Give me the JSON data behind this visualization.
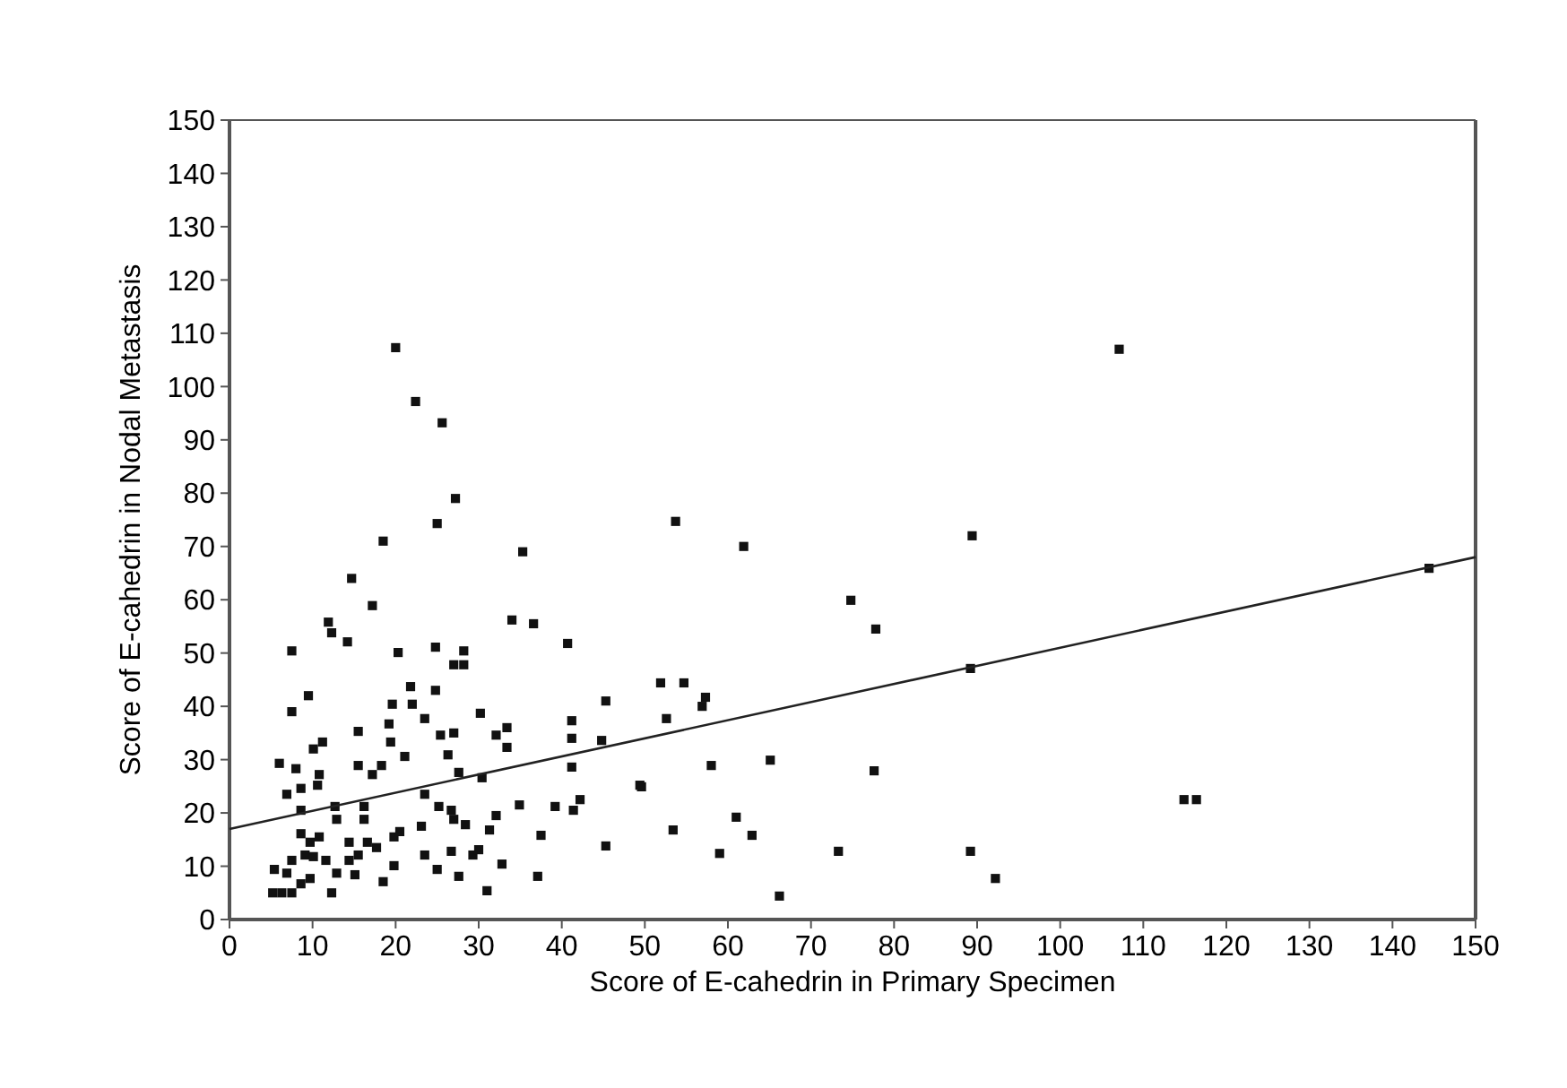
{
  "chart_data": {
    "type": "scatter",
    "xlabel": "Score of E-cahedrin in Primary Specimen",
    "ylabel": "Score of E-cahedrin in Nodal Metastasis",
    "xlim": [
      0,
      150
    ],
    "ylim": [
      0,
      150
    ],
    "xticks": [
      0,
      10,
      20,
      30,
      40,
      50,
      60,
      70,
      80,
      90,
      100,
      110,
      120,
      130,
      140,
      150
    ],
    "yticks": [
      0,
      10,
      20,
      30,
      40,
      50,
      60,
      70,
      80,
      90,
      100,
      110,
      120,
      130,
      140,
      150
    ],
    "grid": false,
    "series": [
      {
        "color": "#111111",
        "marker": "square",
        "x": [
          20,
          22.4,
          25.6,
          27.2,
          25,
          18.5,
          35.3,
          14.7,
          17.2,
          11.9,
          12.3,
          14.2,
          7.5,
          20.3,
          24.8,
          28.2,
          27,
          28.2,
          34,
          36.6,
          40.7,
          107.1,
          53.7,
          61.9,
          89.4,
          74.8,
          77.8,
          89.2,
          51.9,
          54.7,
          57.3,
          56.9,
          52.6,
          58,
          65.1,
          77.6,
          49.6,
          53.4,
          61,
          62.9,
          59,
          73.3,
          89.2,
          92.2,
          66.2,
          144.4,
          114.9,
          116.4,
          7.5,
          9.5,
          15.5,
          19.2,
          19.6,
          21.8,
          22,
          23.5,
          24.8,
          19.4,
          21.1,
          25.4,
          27,
          26.3,
          27.6,
          30.2,
          32.1,
          33.4,
          33.4,
          30.4,
          41.2,
          41.2,
          41.2,
          44.8,
          45.3,
          49.4,
          6,
          8,
          6.9,
          8.6,
          8.6,
          10.6,
          10.8,
          10.1,
          11.2,
          12.7,
          12.9,
          15.5,
          17.2,
          18.3,
          16.2,
          16.2,
          23.5,
          25.2,
          26.7,
          27,
          28.4,
          31.3,
          32.1,
          34.9,
          39.2,
          41.4,
          42.2,
          37.5,
          45.3,
          37.1,
          32.8,
          31,
          27.6,
          29.3,
          30,
          25,
          23.1,
          23.5,
          26.7,
          19.8,
          20.5,
          19.8,
          18.5,
          17.7,
          16.6,
          15.5,
          14.4,
          15.1,
          12.9,
          12.3,
          11.6,
          9.7,
          10.8,
          8.6,
          9.1,
          7.5,
          6.9,
          5.4,
          5.2,
          6.3,
          7.5,
          9.7,
          8.6,
          10.1,
          14.4
        ],
        "values": [
          107.3,
          97.2,
          93.2,
          79,
          74.3,
          71,
          69,
          64,
          58.9,
          55.8,
          53.8,
          52.1,
          50.4,
          50.1,
          51.1,
          50.4,
          47.8,
          47.8,
          56.2,
          55.5,
          51.8,
          107,
          74.7,
          70,
          72,
          59.9,
          54.5,
          47.1,
          44.4,
          44.4,
          41.7,
          40,
          37.7,
          28.9,
          29.9,
          27.9,
          24.9,
          16.8,
          19.2,
          15.8,
          12.4,
          12.8,
          12.8,
          7.7,
          4.4,
          65.9,
          22.5,
          22.5,
          39,
          42,
          35.3,
          36.7,
          40.4,
          43.7,
          40.4,
          37.7,
          43,
          33.3,
          30.6,
          34.6,
          35,
          30.9,
          27.6,
          38.7,
          34.6,
          36,
          32.3,
          26.6,
          37.3,
          34,
          28.6,
          33.6,
          41,
          25.2,
          29.3,
          28.3,
          23.5,
          24.6,
          20.5,
          25.2,
          27.2,
          32,
          33.3,
          21.2,
          18.8,
          28.9,
          27.2,
          28.9,
          21.2,
          18.8,
          23.5,
          21.2,
          20.5,
          18.8,
          17.8,
          16.8,
          19.5,
          21.5,
          21.2,
          20.5,
          22.5,
          15.8,
          13.8,
          8.1,
          10.4,
          5.4,
          8.1,
          12.1,
          13.1,
          9.4,
          17.5,
          12.1,
          12.8,
          15.5,
          16.5,
          10.1,
          7.1,
          13.5,
          14.5,
          12.1,
          14.5,
          8.4,
          8.7,
          5,
          11.1,
          14.5,
          15.5,
          16.1,
          12.1,
          11.1,
          8.7,
          9.4,
          5,
          5,
          5,
          7.7,
          6.7,
          11.8,
          11.1
        ]
      },
      {
        "type": "line",
        "color": "#222222",
        "marker": "none",
        "line_style": "solid",
        "x": [
          0,
          150
        ],
        "values": [
          17,
          68
        ]
      }
    ]
  }
}
